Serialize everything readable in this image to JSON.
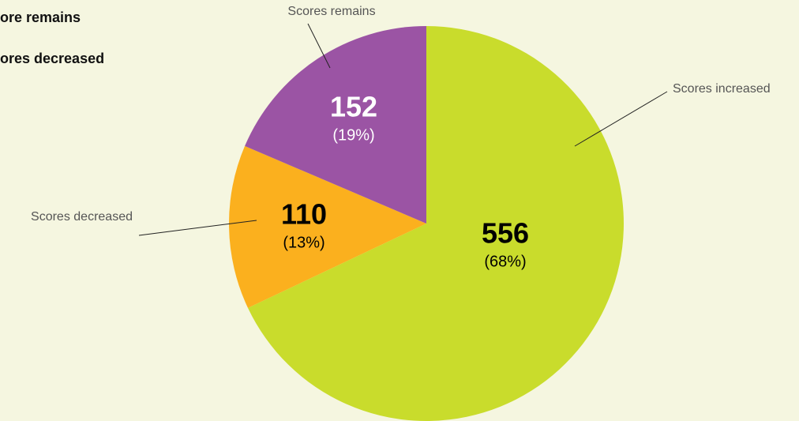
{
  "chart_data": {
    "type": "pie",
    "categories": [
      "Scores increased",
      "Scores decreased",
      "Scores remains"
    ],
    "values": [
      556,
      110,
      152
    ],
    "percent_labels": [
      "(68%)",
      "(13%)",
      "(19%)"
    ],
    "colors": [
      "#c9dc2c",
      "#fbb01e",
      "#9b54a4"
    ],
    "legend_fragments": [
      "ore remains",
      "ores decreased"
    ]
  }
}
